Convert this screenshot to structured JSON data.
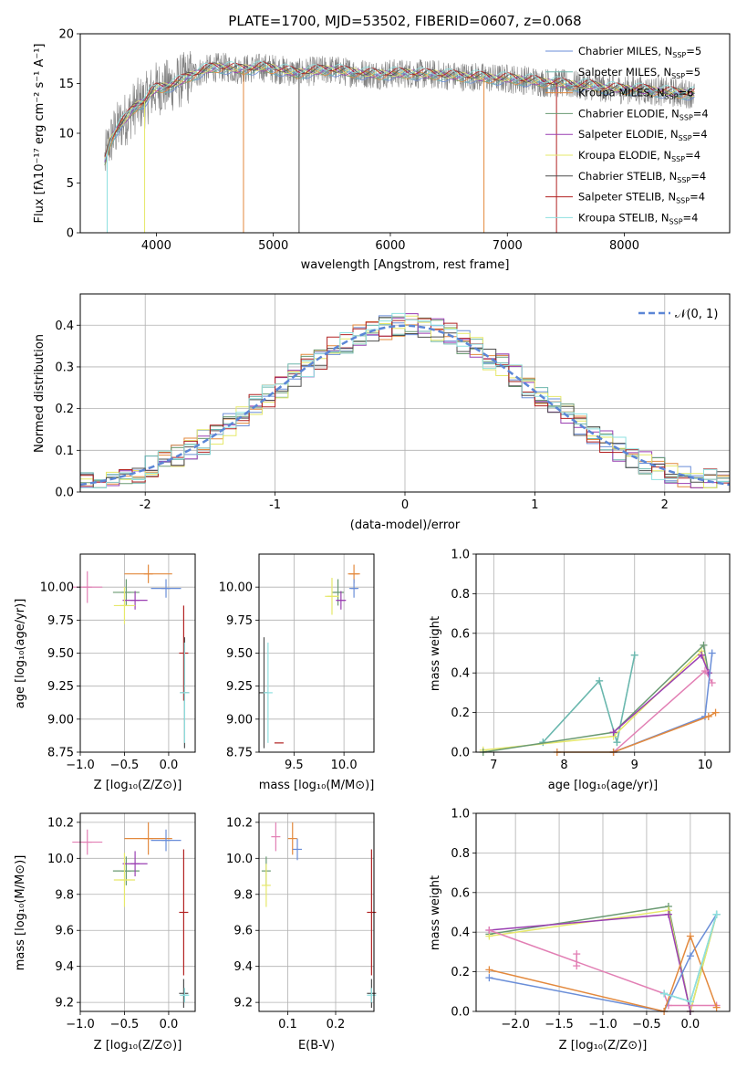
{
  "chart_data": [
    {
      "id": "spectrum",
      "type": "line",
      "title": "PLATE=1700, MJD=53502, FIBERID=0607, z=0.068",
      "xlabel": "wavelength [Angstrom, rest frame]",
      "ylabel": "Flux [fλ10⁻¹⁷ erg cm⁻² s⁻¹ A⁻¹]",
      "xlim": [
        3350,
        8900
      ],
      "ylim": [
        0,
        20
      ],
      "xticks": [
        4000,
        5000,
        6000,
        7000,
        8000
      ],
      "yticks": [
        0,
        5,
        10,
        15,
        20
      ],
      "grid": false,
      "legend_position": "top-right",
      "data_spectrum": {
        "name": "data",
        "color": "#808080",
        "points": [
          [
            3560,
            7.2
          ],
          [
            3600,
            9.0
          ],
          [
            3650,
            10.2
          ],
          [
            3700,
            11.0
          ],
          [
            3750,
            11.6
          ],
          [
            3800,
            12.4
          ],
          [
            3850,
            12.9
          ],
          [
            3900,
            13.2
          ],
          [
            3950,
            14.0
          ],
          [
            4000,
            14.5
          ],
          [
            4050,
            14.6
          ],
          [
            4100,
            14.7
          ],
          [
            4200,
            15.2
          ],
          [
            4300,
            15.8
          ],
          [
            4400,
            16.3
          ],
          [
            4500,
            16.6
          ],
          [
            4600,
            16.6
          ],
          [
            4700,
            16.4
          ],
          [
            4800,
            16.5
          ],
          [
            4900,
            16.6
          ],
          [
            5000,
            16.5
          ],
          [
            5100,
            16.3
          ],
          [
            5200,
            16.0
          ],
          [
            5300,
            16.2
          ],
          [
            5400,
            16.3
          ],
          [
            5500,
            16.4
          ],
          [
            5600,
            16.2
          ],
          [
            5700,
            16.1
          ],
          [
            5800,
            16.0
          ],
          [
            5900,
            15.9
          ],
          [
            6000,
            16.0
          ],
          [
            6100,
            16.0
          ],
          [
            6200,
            16.0
          ],
          [
            6300,
            15.9
          ],
          [
            6400,
            15.9
          ],
          [
            6500,
            15.8
          ],
          [
            6600,
            15.7
          ],
          [
            6700,
            15.7
          ],
          [
            6800,
            15.6
          ],
          [
            6900,
            15.5
          ],
          [
            7000,
            15.5
          ],
          [
            7100,
            15.4
          ],
          [
            7200,
            15.3
          ],
          [
            7300,
            15.1
          ],
          [
            7400,
            15.1
          ],
          [
            7500,
            14.9
          ],
          [
            7600,
            14.8
          ],
          [
            7700,
            14.8
          ],
          [
            7800,
            14.6
          ],
          [
            7900,
            14.5
          ],
          [
            8000,
            14.4
          ],
          [
            8100,
            14.4
          ],
          [
            8200,
            14.3
          ],
          [
            8300,
            14.2
          ],
          [
            8400,
            14.1
          ],
          [
            8500,
            14.0
          ],
          [
            8600,
            14.0
          ]
        ]
      },
      "series": [
        {
          "name": "Chabrier MILES, N",
          "ssp": "5",
          "color": "#6a8ed8"
        },
        {
          "name": "Salpeter MILES, N",
          "ssp": "5",
          "color": "#6cb6ac"
        },
        {
          "name": "Kroupa MILES, N",
          "ssp": "6",
          "color": "#e3893d"
        },
        {
          "name": "Chabrier ELODIE, N",
          "ssp": "4",
          "color": "#6a9a72"
        },
        {
          "name": "Salpeter ELODIE, N",
          "ssp": "4",
          "color": "#9a3fb2"
        },
        {
          "name": "Kroupa ELODIE, N",
          "ssp": "4",
          "color": "#e6e86a"
        },
        {
          "name": "Chabrier STELIB, N",
          "ssp": "4",
          "color": "#4f4f4f"
        },
        {
          "name": "Salpeter STELIB, N",
          "ssp": "4",
          "color": "#b22222"
        },
        {
          "name": "Kroupa STELIB, N",
          "ssp": "4",
          "color": "#8ee0e0"
        }
      ]
    },
    {
      "id": "residuals",
      "type": "line",
      "xlabel": "(data-model)/error",
      "ylabel": "Normed distribution",
      "xlim": [
        -2.5,
        2.5
      ],
      "ylim": [
        0,
        0.475
      ],
      "xticks": [
        -2,
        -1,
        0,
        1,
        2
      ],
      "yticks": [
        0.0,
        0.1,
        0.2,
        0.3,
        0.4
      ],
      "grid": true,
      "legend_position": "top-right",
      "gaussian": {
        "label": "𝒩(0, 1)",
        "mu": 0,
        "sigma": 1,
        "color": "#5b86d6"
      }
    },
    {
      "id": "age_vs_Z",
      "type": "scatter",
      "xlabel": "Z [log₁₀(Z/Z⊙)]",
      "ylabel": "age  [log₁₀(age/yr)]",
      "xlim": [
        -1.0,
        0.3
      ],
      "ylim": [
        8.75,
        10.25
      ],
      "xticks": [
        -1.0,
        -0.5,
        0.0
      ],
      "yticks": [
        8.75,
        9.0,
        9.25,
        9.5,
        9.75,
        10.0
      ],
      "grid": true,
      "points": [
        {
          "color": "#e27fb4",
          "x": -0.92,
          "y": 10.0,
          "xerr": 0.17,
          "yerr": 0.12
        },
        {
          "color": "#e3893d",
          "x": -0.23,
          "y": 10.1,
          "xerr": 0.27,
          "yerr": 0.07
        },
        {
          "color": "#6a8ed8",
          "x": -0.03,
          "y": 9.99,
          "xerr": 0.17,
          "yerr": 0.07
        },
        {
          "color": "#6a9a72",
          "x": -0.48,
          "y": 9.96,
          "xerr": 0.15,
          "yerr": 0.1
        },
        {
          "color": "#9a3fb2",
          "x": -0.38,
          "y": 9.9,
          "xerr": 0.14,
          "yerr": 0.07
        },
        {
          "color": "#e6e86a",
          "x": -0.5,
          "y": 9.86,
          "xerr": 0.12,
          "yerr": 0.14
        },
        {
          "color": "#b22222",
          "x": 0.17,
          "y": 9.5,
          "xerr": 0.0,
          "yerr": 0.36
        },
        {
          "color": "#4f4f4f",
          "x": 0.18,
          "y": 9.2,
          "xerr": 0.0,
          "yerr": 0.42
        },
        {
          "color": "#8ee0e0",
          "x": 0.18,
          "y": 9.2,
          "xerr": 0.0,
          "yerr": 0.38
        }
      ]
    },
    {
      "id": "age_vs_mass",
      "type": "scatter",
      "xlabel": "mass [log₁₀(M/M⊙)]",
      "xlim": [
        9.15,
        10.3
      ],
      "ylim": [
        8.75,
        10.25
      ],
      "xticks": [
        9.5,
        10.0
      ],
      "yticks": [
        8.75,
        9.0,
        9.25,
        9.5,
        9.75,
        10.0
      ],
      "grid": true,
      "points": [
        {
          "color": "#e3893d",
          "x": 10.1,
          "y": 10.1,
          "xerr": 0.06,
          "yerr": 0.07
        },
        {
          "color": "#6a8ed8",
          "x": 10.1,
          "y": 9.99,
          "xerr": 0.03,
          "yerr": 0.07
        },
        {
          "color": "#6a9a72",
          "x": 9.94,
          "y": 9.96,
          "xerr": 0.06,
          "yerr": 0.1
        },
        {
          "color": "#9a3fb2",
          "x": 9.97,
          "y": 9.9,
          "xerr": 0.05,
          "yerr": 0.07
        },
        {
          "color": "#e6e86a",
          "x": 9.88,
          "y": 9.93,
          "xerr": 0.07,
          "yerr": 0.14
        },
        {
          "color": "#b22222",
          "x": 9.35,
          "y": 8.82,
          "xerr": 0.0,
          "yerr": 0.0
        },
        {
          "color": "#4f4f4f",
          "x": 9.2,
          "y": 9.2,
          "xerr": 0.0,
          "yerr": 0.42
        },
        {
          "color": "#8ee0e0",
          "x": 9.24,
          "y": 9.2,
          "xerr": 0.0,
          "yerr": 0.38
        }
      ]
    },
    {
      "id": "massweight_vs_age",
      "type": "line",
      "xlabel": "age  [log₁₀(age/yr)]",
      "ylabel": "mass weight",
      "xlim": [
        6.75,
        10.35
      ],
      "ylim": [
        0.0,
        1.0
      ],
      "xticks": [
        7,
        8,
        9,
        10
      ],
      "yticks": [
        0.0,
        0.2,
        0.4,
        0.6,
        0.8,
        1.0
      ],
      "grid": true,
      "series": [
        {
          "color": "#8ee0e0",
          "x": [
            7.7,
            8.5,
            8.75,
            9.0
          ],
          "y": [
            0.05,
            0.36,
            0.05,
            0.49
          ]
        },
        {
          "color": "#6cb6ac",
          "x": [
            7.7,
            8.5,
            8.75,
            9.0
          ],
          "y": [
            0.05,
            0.36,
            0.05,
            0.49
          ]
        },
        {
          "color": "#e6e86a",
          "x": [
            6.85,
            8.7,
            9.95,
            10.05
          ],
          "y": [
            0.01,
            0.08,
            0.51,
            0.4
          ]
        },
        {
          "color": "#6a9a72",
          "x": [
            6.85,
            8.7,
            9.98,
            10.05
          ],
          "y": [
            0.0,
            0.1,
            0.54,
            0.4
          ]
        },
        {
          "color": "#9a3fb2",
          "x": [
            8.7,
            9.95,
            10.05
          ],
          "y": [
            0.1,
            0.49,
            0.4
          ]
        },
        {
          "color": "#e27fb4",
          "x": [
            8.7,
            10.0,
            10.1
          ],
          "y": [
            0.0,
            0.41,
            0.35
          ]
        },
        {
          "color": "#6a8ed8",
          "x": [
            8.7,
            10.0,
            10.1
          ],
          "y": [
            0.0,
            0.18,
            0.5
          ]
        },
        {
          "color": "#e3893d",
          "x": [
            7.9,
            8.7,
            10.05,
            10.15
          ],
          "y": [
            0.0,
            0.0,
            0.18,
            0.2
          ]
        }
      ]
    },
    {
      "id": "mass_vs_Z",
      "type": "scatter",
      "xlabel": "Z [log₁₀(Z/Z⊙)]",
      "ylabel": "mass [log₁₀(M/M⊙)]",
      "xlim": [
        -1.0,
        0.3
      ],
      "ylim": [
        9.15,
        10.25
      ],
      "xticks": [
        -1.0,
        -0.5,
        0.0
      ],
      "yticks": [
        9.2,
        9.4,
        9.6,
        9.8,
        10.0,
        10.2
      ],
      "grid": true,
      "points": [
        {
          "color": "#e27fb4",
          "x": -0.92,
          "y": 10.09,
          "xerr": 0.17,
          "yerr": 0.07
        },
        {
          "color": "#e3893d",
          "x": -0.23,
          "y": 10.11,
          "xerr": 0.27,
          "yerr": 0.09
        },
        {
          "color": "#6a8ed8",
          "x": -0.03,
          "y": 10.1,
          "xerr": 0.17,
          "yerr": 0.06
        },
        {
          "color": "#6a9a72",
          "x": -0.48,
          "y": 9.93,
          "xerr": 0.15,
          "yerr": 0.08
        },
        {
          "color": "#9a3fb2",
          "x": -0.38,
          "y": 9.97,
          "xerr": 0.14,
          "yerr": 0.07
        },
        {
          "color": "#e6e86a",
          "x": -0.5,
          "y": 9.88,
          "xerr": 0.12,
          "yerr": 0.15
        },
        {
          "color": "#b22222",
          "x": 0.17,
          "y": 9.7,
          "xerr": 0.0,
          "yerr": 0.35
        },
        {
          "color": "#4f4f4f",
          "x": 0.17,
          "y": 9.25,
          "xerr": 0.0,
          "yerr": 0.08
        },
        {
          "color": "#8ee0e0",
          "x": 0.18,
          "y": 9.24,
          "xerr": 0.03,
          "yerr": 0.04
        }
      ]
    },
    {
      "id": "mass_vs_ebv",
      "type": "scatter",
      "xlabel": "E(B-V)",
      "xlim": [
        0.04,
        0.28
      ],
      "ylim": [
        9.15,
        10.25
      ],
      "xticks": [
        0.1,
        0.2
      ],
      "yticks": [
        9.2,
        9.4,
        9.6,
        9.8,
        10.0,
        10.2
      ],
      "grid": true,
      "points": [
        {
          "color": "#e27fb4",
          "x": 0.075,
          "y": 10.12,
          "xerr": 0.0,
          "yerr": 0.08
        },
        {
          "color": "#e3893d",
          "x": 0.11,
          "y": 10.11,
          "xerr": 0.0,
          "yerr": 0.09
        },
        {
          "color": "#6a8ed8",
          "x": 0.12,
          "y": 10.05,
          "xerr": 0.0,
          "yerr": 0.06
        },
        {
          "color": "#6a9a72",
          "x": 0.055,
          "y": 9.93,
          "xerr": 0.0,
          "yerr": 0.08
        },
        {
          "color": "#e6e86a",
          "x": 0.055,
          "y": 9.85,
          "xerr": 0.0,
          "yerr": 0.12
        },
        {
          "color": "#b22222",
          "x": 0.275,
          "y": 9.7,
          "xerr": 0.0,
          "yerr": 0.35
        },
        {
          "color": "#4f4f4f",
          "x": 0.275,
          "y": 9.25,
          "xerr": 0.0,
          "yerr": 0.08
        },
        {
          "color": "#8ee0e0",
          "x": 0.275,
          "y": 9.24,
          "xerr": 0.0,
          "yerr": 0.04
        }
      ]
    },
    {
      "id": "massweight_vs_Z",
      "type": "line",
      "xlabel": "Z [log₁₀(Z/Z⊙)]",
      "ylabel": "mass weight",
      "xlim": [
        -2.45,
        0.45
      ],
      "ylim": [
        0.0,
        1.0
      ],
      "xticks": [
        -2.0,
        -1.5,
        -1.0,
        -0.5,
        0.0
      ],
      "yticks": [
        0.0,
        0.2,
        0.4,
        0.6,
        0.8,
        1.0
      ],
      "grid": true,
      "series": [
        {
          "color": "#6a9a72",
          "x": [
            -2.3,
            -0.25,
            0.0,
            0.3
          ],
          "y": [
            0.39,
            0.53,
            0.0,
            0.49
          ]
        },
        {
          "color": "#e6e86a",
          "x": [
            -2.3,
            -0.25,
            0.0,
            0.3
          ],
          "y": [
            0.38,
            0.51,
            0.0,
            0.49
          ]
        },
        {
          "color": "#9a3fb2",
          "x": [
            -2.3,
            -0.25,
            0.0
          ],
          "y": [
            0.41,
            0.49,
            0.0
          ]
        },
        {
          "color": "#e27fb4",
          "x": [
            -2.3,
            -0.3,
            -0.25,
            0.0,
            0.3
          ],
          "y": [
            0.41,
            0.09,
            0.03,
            0.03,
            0.03
          ]
        },
        {
          "color": "#e27fb4",
          "x": [
            -1.3,
            -1.3
          ],
          "y": [
            0.23,
            0.29
          ]
        },
        {
          "color": "#6a8ed8",
          "x": [
            -2.3,
            -0.3,
            0.0,
            0.3
          ],
          "y": [
            0.17,
            0.0,
            0.28,
            0.49
          ]
        },
        {
          "color": "#e3893d",
          "x": [
            -2.3,
            -0.3,
            0.0,
            0.3
          ],
          "y": [
            0.21,
            0.0,
            0.38,
            0.02
          ]
        },
        {
          "color": "#6cb6ac",
          "x": [
            -0.3,
            0.0,
            0.3
          ],
          "y": [
            0.09,
            0.05,
            0.49
          ]
        },
        {
          "color": "#8ee0e0",
          "x": [
            -0.3,
            0.0,
            0.3
          ],
          "y": [
            0.09,
            0.05,
            0.49
          ]
        }
      ]
    }
  ]
}
